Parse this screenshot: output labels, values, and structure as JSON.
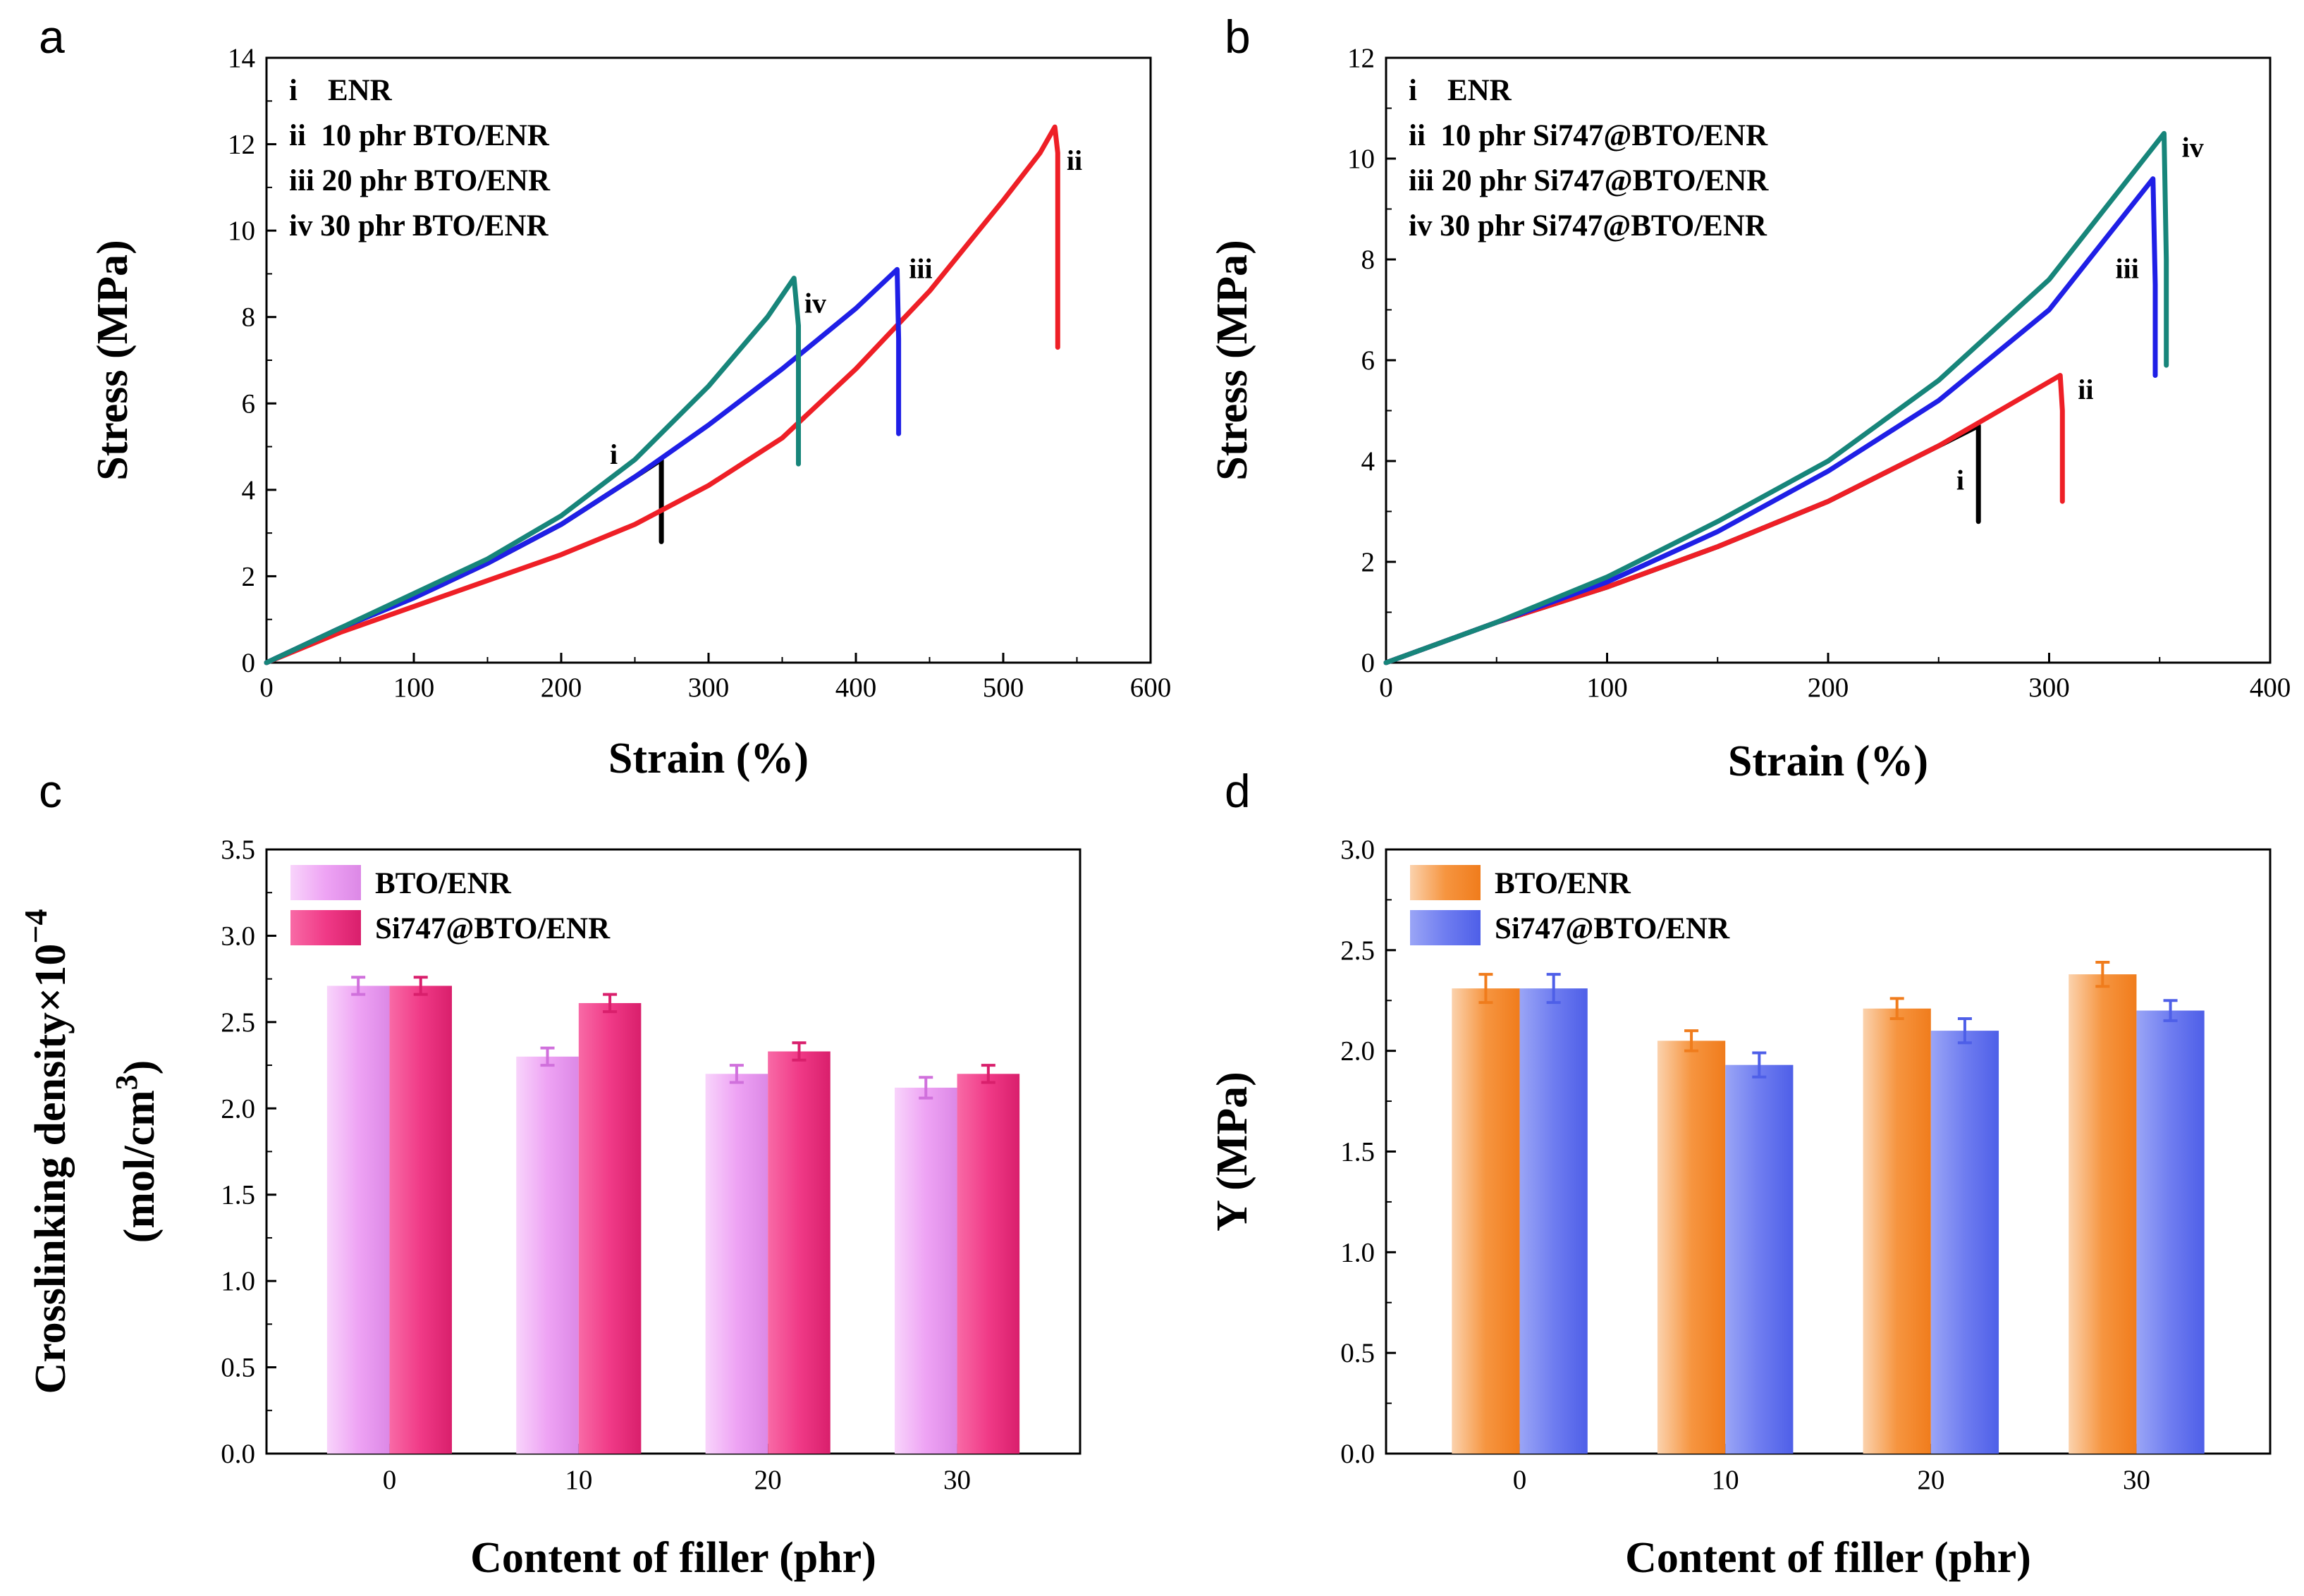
{
  "panel_labels": [
    "a",
    "b",
    "c",
    "d"
  ],
  "colors": {
    "black": "#000000",
    "red": "#ee1f26",
    "blue": "#1f1fe6",
    "teal": "#17857a",
    "pink_light": "#eea3f4",
    "pink_dark": "#f03a87",
    "orange": "#f69540",
    "blue_light": "#6f7df0"
  },
  "chart_data": [
    {
      "id": "a",
      "type": "line",
      "xlabel": "Strain (%)",
      "ylabel": "Stress (MPa)",
      "xlim": [
        0,
        600
      ],
      "ylim": [
        0,
        14
      ],
      "xticks": [
        0,
        100,
        200,
        300,
        400,
        500,
        600
      ],
      "yticks": [
        0,
        2,
        4,
        6,
        8,
        10,
        12,
        14
      ],
      "legend": [
        "i    ENR",
        "ii  10 phr BTO/ENR",
        "iii 20 phr BTO/ENR",
        "iv 30 phr BTO/ENR"
      ],
      "series": [
        {
          "name": "i",
          "color": "black",
          "x": [
            0,
            50,
            100,
            150,
            200,
            250,
            268,
            268
          ],
          "y": [
            0,
            0.8,
            1.5,
            2.3,
            3.2,
            4.3,
            4.7,
            2.8
          ],
          "label_at": [
            233,
            4.8
          ]
        },
        {
          "name": "ii",
          "color": "red",
          "x": [
            0,
            50,
            100,
            150,
            200,
            250,
            300,
            350,
            400,
            450,
            500,
            525,
            535,
            537,
            537
          ],
          "y": [
            0,
            0.7,
            1.3,
            1.9,
            2.5,
            3.2,
            4.1,
            5.2,
            6.8,
            8.6,
            10.7,
            11.8,
            12.4,
            11.8,
            7.3
          ],
          "label_at": [
            543,
            11.6
          ]
        },
        {
          "name": "iii",
          "color": "blue",
          "x": [
            0,
            50,
            100,
            150,
            200,
            250,
            300,
            350,
            400,
            428,
            429,
            429
          ],
          "y": [
            0,
            0.8,
            1.5,
            2.3,
            3.2,
            4.3,
            5.5,
            6.8,
            8.2,
            9.1,
            7.5,
            5.3
          ],
          "label_at": [
            436,
            9.1
          ]
        },
        {
          "name": "iv",
          "color": "teal",
          "x": [
            0,
            50,
            100,
            150,
            200,
            250,
            300,
            340,
            358,
            361,
            361
          ],
          "y": [
            0,
            0.8,
            1.6,
            2.4,
            3.4,
            4.7,
            6.4,
            8.0,
            8.9,
            7.8,
            4.6
          ],
          "label_at": [
            365,
            8.3
          ]
        }
      ]
    },
    {
      "id": "b",
      "type": "line",
      "xlabel": "Strain (%)",
      "ylabel": "Stress (MPa)",
      "xlim": [
        0,
        400
      ],
      "ylim": [
        0,
        12
      ],
      "xticks": [
        0,
        100,
        200,
        300,
        400
      ],
      "yticks": [
        0,
        2,
        4,
        6,
        8,
        10,
        12
      ],
      "legend": [
        "i    ENR",
        "ii  10 phr Si747@BTO/ENR",
        "iii 20 phr Si747@BTO/ENR",
        "iv 30 phr Si747@BTO/ENR"
      ],
      "series": [
        {
          "name": "i",
          "color": "black",
          "x": [
            0,
            50,
            100,
            150,
            200,
            250,
            268,
            268
          ],
          "y": [
            0,
            0.8,
            1.5,
            2.3,
            3.2,
            4.3,
            4.7,
            2.8
          ],
          "label_at": [
            258,
            3.6
          ]
        },
        {
          "name": "ii",
          "color": "red",
          "x": [
            0,
            50,
            100,
            150,
            200,
            250,
            305,
            306,
            306
          ],
          "y": [
            0,
            0.8,
            1.5,
            2.3,
            3.2,
            4.3,
            5.7,
            5.0,
            3.2
          ],
          "label_at": [
            313,
            5.4
          ]
        },
        {
          "name": "iii",
          "color": "blue",
          "x": [
            0,
            50,
            100,
            150,
            200,
            250,
            300,
            347,
            348,
            348
          ],
          "y": [
            0,
            0.8,
            1.6,
            2.6,
            3.8,
            5.2,
            7.0,
            9.6,
            7.5,
            5.7
          ],
          "label_at": [
            330,
            7.8
          ]
        },
        {
          "name": "iv",
          "color": "teal",
          "x": [
            0,
            50,
            100,
            150,
            200,
            250,
            300,
            352,
            353,
            353
          ],
          "y": [
            0,
            0.8,
            1.7,
            2.8,
            4.0,
            5.6,
            7.6,
            10.5,
            8.0,
            5.9
          ],
          "label_at": [
            360,
            10.2
          ]
        }
      ]
    },
    {
      "id": "c",
      "type": "bar",
      "xlabel": "Content of filler (phr)",
      "ylabel_line1": "Crosslinking density×10",
      "ylabel_exp": "−4",
      "ylabel_line2": "(mol/cm",
      "ylabel_line2_exp": "3",
      "ylabel_line2_end": ")",
      "categories": [
        "0",
        "10",
        "20",
        "30"
      ],
      "ylim": [
        0,
        3.5
      ],
      "yticks": [
        "0.0",
        "0.5",
        "1.0",
        "1.5",
        "2.0",
        "2.5",
        "3.0",
        "3.5"
      ],
      "series": [
        {
          "name": "BTO/ENR",
          "color": "pink_light",
          "values": [
            2.71,
            2.3,
            2.2,
            2.12
          ],
          "errors": [
            0.05,
            0.05,
            0.05,
            0.06
          ]
        },
        {
          "name": "Si747@BTO/ENR",
          "color": "pink_dark",
          "values": [
            2.71,
            2.61,
            2.33,
            2.2
          ],
          "errors": [
            0.05,
            0.05,
            0.05,
            0.05
          ]
        }
      ]
    },
    {
      "id": "d",
      "type": "bar",
      "xlabel": "Content of filler (phr)",
      "ylabel": "Y (MPa)",
      "categories": [
        "0",
        "10",
        "20",
        "30"
      ],
      "ylim": [
        0,
        3.0
      ],
      "yticks": [
        "0.0",
        "0.5",
        "1.0",
        "1.5",
        "2.0",
        "2.5",
        "3.0"
      ],
      "series": [
        {
          "name": "BTO/ENR",
          "color": "orange",
          "values": [
            2.31,
            2.05,
            2.21,
            2.38
          ],
          "errors": [
            0.07,
            0.05,
            0.05,
            0.06
          ]
        },
        {
          "name": "Si747@BTO/ENR",
          "color": "blue_light",
          "values": [
            2.31,
            1.93,
            2.1,
            2.2
          ],
          "errors": [
            0.07,
            0.06,
            0.06,
            0.05
          ]
        }
      ]
    }
  ]
}
